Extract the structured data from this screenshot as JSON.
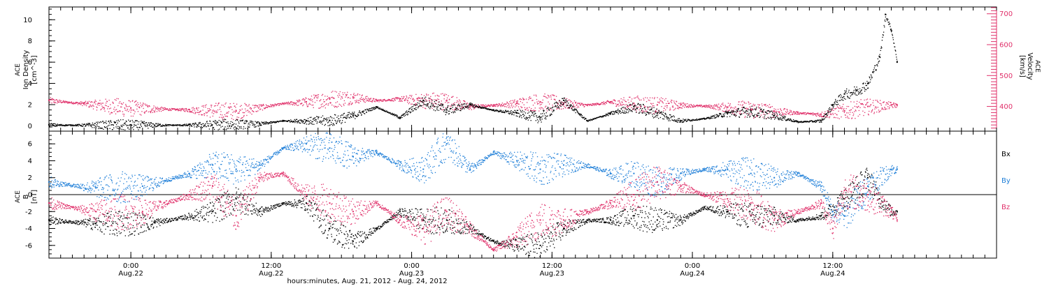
{
  "figure": {
    "x_axis_caption": "hours:minutes, Aug. 21, 2012 - Aug. 24, 2012",
    "x_ticks": [
      {
        "hours": 3,
        "time": "0:00",
        "date": "Aug.22"
      },
      {
        "hours": 15,
        "time": "12:00",
        "date": "Aug.22"
      },
      {
        "hours": 27,
        "time": "0:00",
        "date": "Aug.23"
      },
      {
        "hours": 39,
        "time": "12:00",
        "date": "Aug.23"
      },
      {
        "hours": 51,
        "time": "0:00",
        "date": "Aug.24"
      },
      {
        "hours": 63,
        "time": "12:00",
        "date": "Aug.24"
      }
    ],
    "x_range_hours": [
      -4,
      77
    ],
    "data_end_hours": 68.5
  },
  "chart_data": [
    {
      "type": "scatter",
      "panel": "top",
      "ylabel_left": [
        "ACE",
        "Ion Density",
        "[cm^-3]"
      ],
      "ylabel_right": [
        "ACE",
        "Velocity",
        "[km/s]"
      ],
      "ylim_left": [
        -0.5,
        11.2
      ],
      "yticks_left": [
        0,
        2,
        4,
        6,
        8,
        10
      ],
      "ylim_right": [
        320,
        722
      ],
      "yticks_right": [
        400,
        500,
        600,
        700
      ],
      "series": [
        {
          "name": "",
          "axis": "left",
          "color": "#000000",
          "points": [
            [
              -4,
              0.1
            ],
            [
              3,
              0.1
            ],
            [
              8,
              0.1
            ],
            [
              14,
              0.2
            ],
            [
              16,
              0.5
            ],
            [
              18,
              0.5
            ],
            [
              20,
              0.5
            ],
            [
              22,
              1.0
            ],
            [
              24,
              1.8
            ],
            [
              26,
              0.8
            ],
            [
              28,
              2.4
            ],
            [
              30,
              1.5
            ],
            [
              32,
              2.0
            ],
            [
              34,
              1.5
            ],
            [
              36,
              1.2
            ],
            [
              38,
              0.8
            ],
            [
              40,
              2.4
            ],
            [
              42,
              0.5
            ],
            [
              44,
              1.2
            ],
            [
              46,
              1.8
            ],
            [
              48,
              1.2
            ],
            [
              50,
              0.5
            ],
            [
              52,
              0.7
            ],
            [
              54,
              1.2
            ],
            [
              56,
              1.4
            ],
            [
              58,
              1.0
            ],
            [
              60,
              0.4
            ],
            [
              62,
              0.5
            ],
            [
              63,
              2.0
            ],
            [
              64,
              3.0
            ],
            [
              65,
              3.3
            ],
            [
              66,
              4.0
            ],
            [
              67,
              6.5
            ],
            [
              67.5,
              10.5
            ],
            [
              68,
              9.0
            ],
            [
              68.5,
              6.0
            ]
          ]
        },
        {
          "name": "",
          "axis": "right",
          "color": "#e0306a",
          "points": [
            [
              -4,
              420
            ],
            [
              -1,
              410
            ],
            [
              3,
              395
            ],
            [
              8,
              390
            ],
            [
              12,
              385
            ],
            [
              16,
              410
            ],
            [
              18,
              415
            ],
            [
              20,
              425
            ],
            [
              22,
              430
            ],
            [
              24,
              420
            ],
            [
              26,
              425
            ],
            [
              28,
              420
            ],
            [
              30,
              418
            ],
            [
              32,
              400
            ],
            [
              34,
              405
            ],
            [
              36,
              410
            ],
            [
              38,
              415
            ],
            [
              40,
              410
            ],
            [
              42,
              405
            ],
            [
              44,
              415
            ],
            [
              46,
              410
            ],
            [
              48,
              405
            ],
            [
              50,
              405
            ],
            [
              52,
              402
            ],
            [
              54,
              398
            ],
            [
              56,
              390
            ],
            [
              58,
              385
            ],
            [
              60,
              380
            ],
            [
              62,
              375
            ],
            [
              64,
              385
            ],
            [
              66,
              400
            ],
            [
              68,
              405
            ],
            [
              68.5,
              405
            ]
          ]
        }
      ]
    },
    {
      "type": "scatter",
      "panel": "bottom",
      "ylabel_left": [
        "ACE",
        "B",
        "[nT]"
      ],
      "ylim": [
        -7.5,
        7.5
      ],
      "yticks": [
        -6,
        -4,
        -2,
        0,
        2,
        4,
        6
      ],
      "legend": [
        "Bx",
        "By",
        "Bz"
      ],
      "legend_position": "right",
      "series": [
        {
          "name": "Bx",
          "color": "#000000",
          "points": [
            [
              -4,
              -3
            ],
            [
              0,
              -3.4
            ],
            [
              5,
              -3.3
            ],
            [
              10,
              -2
            ],
            [
              12,
              -0.5
            ],
            [
              14,
              -2
            ],
            [
              16,
              -1
            ],
            [
              18,
              -1
            ],
            [
              20,
              -4
            ],
            [
              22,
              -5.5
            ],
            [
              24,
              -4
            ],
            [
              26,
              -2
            ],
            [
              28,
              -3
            ],
            [
              30,
              -3
            ],
            [
              32,
              -4
            ],
            [
              34,
              -5.5
            ],
            [
              36,
              -6
            ],
            [
              38,
              -6
            ],
            [
              40,
              -4
            ],
            [
              42,
              -3
            ],
            [
              44,
              -3
            ],
            [
              46,
              -2.5
            ],
            [
              48,
              -3
            ],
            [
              50,
              -3
            ],
            [
              52,
              -1.5
            ],
            [
              54,
              -2
            ],
            [
              56,
              -2.5
            ],
            [
              58,
              -2.5
            ],
            [
              60,
              -3
            ],
            [
              62,
              -2.5
            ],
            [
              64,
              -0.5
            ],
            [
              66,
              2
            ],
            [
              67,
              -0.5
            ],
            [
              68,
              -2
            ],
            [
              68.5,
              -2
            ]
          ]
        },
        {
          "name": "By",
          "color": "#1f7fd8",
          "points": [
            [
              -4,
              1.5
            ],
            [
              0,
              0.8
            ],
            [
              4,
              1.0
            ],
            [
              8,
              2.5
            ],
            [
              10,
              3.5
            ],
            [
              12,
              3.0
            ],
            [
              14,
              3.5
            ],
            [
              16,
              5.5
            ],
            [
              18,
              6.0
            ],
            [
              20,
              5.5
            ],
            [
              22,
              4.5
            ],
            [
              24,
              5.0
            ],
            [
              26,
              3.5
            ],
            [
              28,
              3.0
            ],
            [
              30,
              6.0
            ],
            [
              32,
              3.0
            ],
            [
              34,
              5.0
            ],
            [
              36,
              4.0
            ],
            [
              38,
              3.0
            ],
            [
              40,
              3.5
            ],
            [
              42,
              3.5
            ],
            [
              44,
              2.5
            ],
            [
              46,
              2.5
            ],
            [
              48,
              1.5
            ],
            [
              50,
              2.5
            ],
            [
              52,
              3.0
            ],
            [
              54,
              3.0
            ],
            [
              56,
              2.5
            ],
            [
              58,
              2.0
            ],
            [
              60,
              2.5
            ],
            [
              62,
              1.0
            ],
            [
              63,
              -2.0
            ],
            [
              64,
              -2.5
            ],
            [
              66,
              1.0
            ],
            [
              68,
              3.0
            ],
            [
              68.5,
              3.0
            ]
          ]
        },
        {
          "name": "Bz",
          "color": "#e0306a",
          "points": [
            [
              -4,
              -1
            ],
            [
              0,
              -2
            ],
            [
              4,
              -2
            ],
            [
              8,
              0
            ],
            [
              10,
              1
            ],
            [
              12,
              -2.5
            ],
            [
              14,
              2
            ],
            [
              16,
              2.5
            ],
            [
              18,
              0
            ],
            [
              20,
              -1
            ],
            [
              22,
              -2
            ],
            [
              24,
              -1
            ],
            [
              26,
              -3
            ],
            [
              28,
              -4
            ],
            [
              30,
              -2
            ],
            [
              32,
              -4
            ],
            [
              34,
              -6.5
            ],
            [
              36,
              -5
            ],
            [
              38,
              -3
            ],
            [
              40,
              -3
            ],
            [
              42,
              -2
            ],
            [
              44,
              -1
            ],
            [
              46,
              0
            ],
            [
              48,
              1.5
            ],
            [
              50,
              1.0
            ],
            [
              52,
              0
            ],
            [
              54,
              -0.5
            ],
            [
              56,
              -1
            ],
            [
              58,
              -3
            ],
            [
              60,
              -2
            ],
            [
              62,
              -1
            ],
            [
              63,
              -4
            ],
            [
              64,
              0.5
            ],
            [
              66,
              0
            ],
            [
              68,
              -2
            ],
            [
              68.5,
              -3
            ]
          ]
        }
      ]
    }
  ]
}
